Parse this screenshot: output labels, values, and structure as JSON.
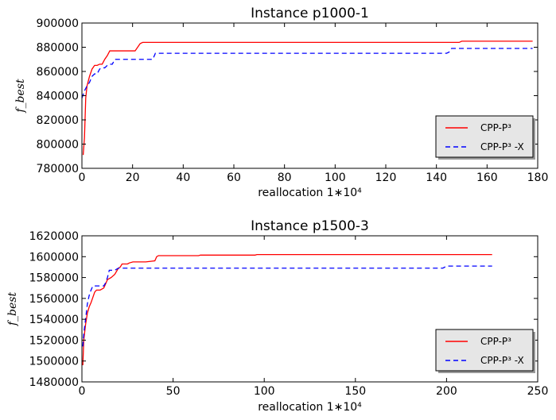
{
  "chart_data": [
    {
      "type": "line",
      "title": "Instance p1000-1",
      "xlabel": "reallocation 1∗10⁴",
      "ylabel": "f_best",
      "xlim": [
        0,
        180
      ],
      "ylim": [
        780000,
        900000
      ],
      "xticks": [
        0,
        20,
        40,
        60,
        80,
        100,
        120,
        140,
        160,
        180
      ],
      "yticks": [
        780000,
        800000,
        820000,
        840000,
        860000,
        880000,
        900000
      ],
      "xtick_labels": [
        "0",
        "20",
        "40",
        "60",
        "80",
        "100",
        "120",
        "140",
        "160",
        "180"
      ],
      "ytick_labels": [
        "780000",
        "800000",
        "820000",
        "840000",
        "860000",
        "880000",
        "900000"
      ],
      "legend_position": "lower-right",
      "series": [
        {
          "name": "CPP-P³",
          "color": "#ff0000",
          "dash": "solid",
          "x": [
            0.5,
            1,
            1.5,
            2,
            3,
            4,
            5,
            6,
            7,
            8,
            9,
            10,
            11,
            12,
            13,
            14,
            16,
            18,
            20,
            21,
            22,
            23,
            24,
            25,
            26,
            30,
            40,
            60,
            100,
            140,
            149,
            150,
            151,
            155,
            170,
            178
          ],
          "y": [
            791000,
            805000,
            838000,
            848000,
            856000,
            862000,
            865000,
            865000,
            866000,
            866000,
            870000,
            873000,
            877000,
            877000,
            877000,
            877000,
            877000,
            877000,
            877000,
            877000,
            880000,
            883000,
            884000,
            884000,
            884000,
            884000,
            884000,
            884000,
            884000,
            884000,
            884000,
            885000,
            885000,
            885000,
            885000,
            885000
          ]
        },
        {
          "name": "CPP-P³ -X",
          "color": "#0000ff",
          "dash": "dashed",
          "x": [
            0,
            0.5,
            1,
            2,
            3,
            4,
            5,
            6,
            7,
            8,
            9,
            10,
            11,
            12,
            13,
            14,
            16,
            18,
            20,
            25,
            28,
            29,
            30,
            40,
            60,
            100,
            130,
            144,
            145,
            146,
            150,
            160,
            178
          ],
          "y": [
            838000,
            841000,
            844000,
            848000,
            851000,
            856000,
            858000,
            858000,
            862000,
            863000,
            863000,
            865000,
            866000,
            866000,
            870000,
            870000,
            870000,
            870000,
            870000,
            870000,
            870000,
            875000,
            875000,
            875000,
            875000,
            875000,
            875000,
            875000,
            876000,
            879000,
            879000,
            879000,
            879000
          ]
        }
      ]
    },
    {
      "type": "line",
      "title": "Instance p1500-3",
      "xlabel": "reallocation 1∗10⁴",
      "ylabel": "f_best",
      "xlim": [
        0,
        250
      ],
      "ylim": [
        1480000,
        1620000
      ],
      "xticks": [
        0,
        50,
        100,
        150,
        200,
        250
      ],
      "yticks": [
        1480000,
        1500000,
        1520000,
        1540000,
        1560000,
        1580000,
        1600000,
        1620000
      ],
      "xtick_labels": [
        "0",
        "50",
        "100",
        "150",
        "200",
        "250"
      ],
      "ytick_labels": [
        "1480000",
        "1500000",
        "1520000",
        "1540000",
        "1560000",
        "1580000",
        "1600000",
        "1620000"
      ],
      "legend_position": "lower-right",
      "series": [
        {
          "name": "CPP-P³",
          "color": "#ff0000",
          "dash": "solid",
          "x": [
            0.5,
            1,
            2,
            3,
            4,
            5,
            6,
            7,
            8,
            10,
            12,
            13,
            14,
            16,
            18,
            20,
            21,
            22,
            25,
            26,
            28,
            30,
            35,
            40,
            41,
            42,
            50,
            60,
            64,
            65,
            80,
            95,
            96,
            100,
            150,
            200,
            225
          ],
          "y": [
            1496000,
            1520000,
            1535000,
            1546000,
            1552000,
            1556000,
            1561000,
            1566000,
            1568000,
            1568000,
            1570000,
            1574000,
            1578000,
            1580000,
            1583000,
            1589000,
            1590000,
            1593000,
            1593000,
            1594000,
            1595000,
            1595000,
            1595000,
            1596000,
            1600000,
            1601000,
            1601000,
            1601000,
            1601000,
            1601500,
            1601500,
            1601500,
            1602000,
            1602000,
            1602000,
            1602000,
            1602000
          ]
        },
        {
          "name": "CPP-P³ -X",
          "color": "#0000ff",
          "dash": "dashed",
          "x": [
            0.5,
            1,
            2,
            3,
            4,
            5,
            6,
            8,
            10,
            12,
            13,
            14,
            15,
            16,
            18,
            19,
            20,
            25,
            40,
            60,
            100,
            150,
            198,
            199,
            200,
            210,
            225
          ],
          "y": [
            1514000,
            1526000,
            1540000,
            1555000,
            1563000,
            1568000,
            1572000,
            1572000,
            1572000,
            1572000,
            1575000,
            1580000,
            1587000,
            1587000,
            1587000,
            1588000,
            1589000,
            1589000,
            1589000,
            1589000,
            1589000,
            1589000,
            1589000,
            1590000,
            1591000,
            1591000,
            1591000
          ]
        }
      ]
    }
  ]
}
